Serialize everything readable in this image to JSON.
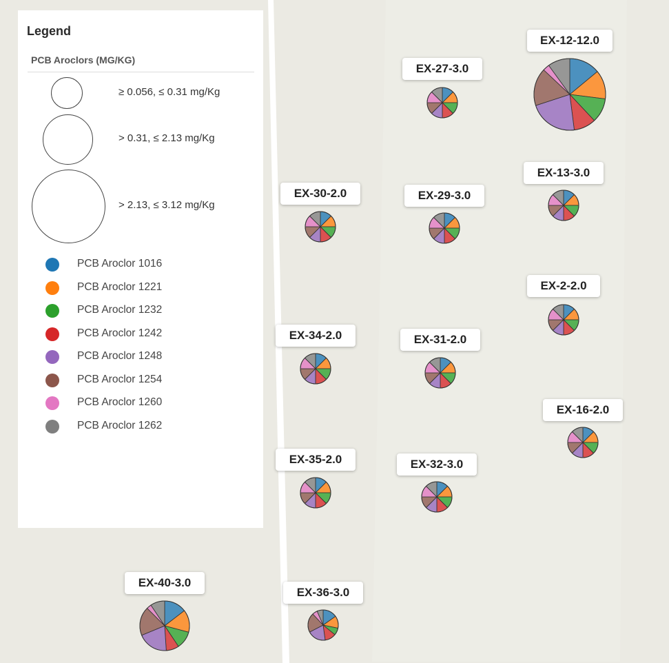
{
  "legend": {
    "title": "Legend",
    "subtitle": "PCB Aroclors (MG/KG)",
    "size_classes": [
      {
        "label": "≥ 0.056, ≤ 0.31 mg/Kg"
      },
      {
        "label": "> 0.31, ≤ 2.13 mg/Kg"
      },
      {
        "label": "> 2.13, ≤ 3.12 mg/Kg"
      }
    ],
    "categories": [
      {
        "label": "PCB Aroclor 1016",
        "color": "#1f77b4"
      },
      {
        "label": "PCB Aroclor 1221",
        "color": "#ff7f0e"
      },
      {
        "label": "PCB Aroclor 1232",
        "color": "#2ca02c"
      },
      {
        "label": "PCB Aroclor 1242",
        "color": "#d62728"
      },
      {
        "label": "PCB Aroclor 1248",
        "color": "#9467bd"
      },
      {
        "label": "PCB Aroclor 1254",
        "color": "#8c564b"
      },
      {
        "label": "PCB Aroclor 1260",
        "color": "#e377c2"
      },
      {
        "label": "PCB Aroclor 1262",
        "color": "#7f7f7f"
      }
    ]
  },
  "samples": [
    {
      "id": "EX-12-12.0"
    },
    {
      "id": "EX-27-3.0"
    },
    {
      "id": "EX-13-3.0"
    },
    {
      "id": "EX-30-2.0"
    },
    {
      "id": "EX-29-3.0"
    },
    {
      "id": "EX-2-2.0"
    },
    {
      "id": "EX-34-2.0"
    },
    {
      "id": "EX-31-2.0"
    },
    {
      "id": "EX-16-2.0"
    },
    {
      "id": "EX-35-2.0"
    },
    {
      "id": "EX-32-3.0"
    },
    {
      "id": "EX-40-3.0"
    },
    {
      "id": "EX-36-3.0"
    }
  ]
}
